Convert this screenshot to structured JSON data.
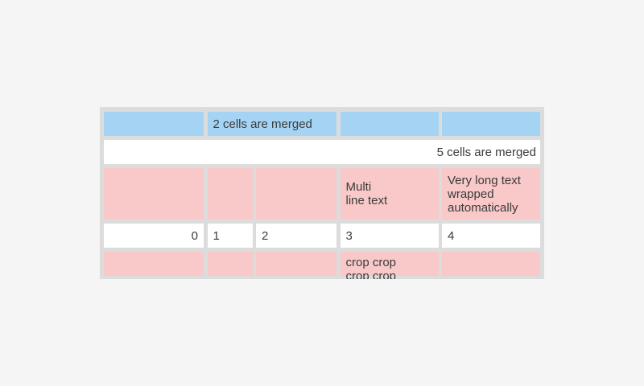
{
  "page": {
    "background": "#f5f5f5"
  },
  "table": {
    "colors": {
      "frame": "#dcdcdd",
      "blue": "#a5d3f3",
      "pink": "#f9c8c8",
      "white": "#ffffff",
      "text": "#3b3b3b"
    },
    "rows": [
      {
        "cells": [
          {
            "text": ""
          },
          {
            "text": "2 cells are merged"
          },
          {
            "text": ""
          },
          {
            "text": ""
          }
        ]
      },
      {
        "cells": [
          {
            "text": "5 cells are merged"
          }
        ]
      },
      {
        "cells": [
          {
            "text": ""
          },
          {
            "text": ""
          },
          {
            "text": ""
          },
          {
            "text": "Multi\nline text"
          },
          {
            "text": "Very long text wrapped automatically"
          }
        ]
      },
      {
        "cells": [
          {
            "text": "0"
          },
          {
            "text": "1"
          },
          {
            "text": "2"
          },
          {
            "text": "3"
          },
          {
            "text": "4"
          }
        ]
      },
      {
        "cells": [
          {
            "text": ""
          },
          {
            "text": ""
          },
          {
            "text": ""
          },
          {
            "text": "crop crop\ncrop crop"
          },
          {
            "text": ""
          }
        ]
      }
    ]
  }
}
